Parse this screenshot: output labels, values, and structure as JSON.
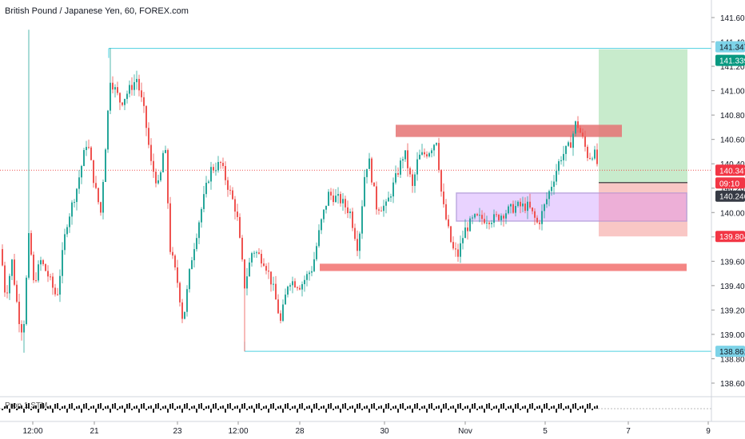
{
  "header": {
    "title": "British Pound / Japanese Yen, 60, FOREX.com"
  },
  "indicator": {
    "label": "Prop 1 STM"
  },
  "colors": {
    "up": "#26a69a",
    "down": "#ef5350",
    "wick": "#5d606b",
    "current_line": "#ef5350",
    "teal_line": "#4dd0e1",
    "profit_zone": "#c8ebcc",
    "loss_zone": "#f9c7c5",
    "supply_zone": "#e57373",
    "demand_zone": "#ef5350",
    "range_box_fill": "#e6ccff",
    "range_box_border": "#b39ddb",
    "range_pink": "#f48fb1",
    "badge_teal": "#7dd3e8",
    "badge_green": "#089981",
    "badge_red": "#f23645",
    "badge_dark": "#363a45"
  },
  "chart_data": {
    "type": "candlestick",
    "symbol": "GBPJPY",
    "interval": "60",
    "ylim": [
      138.5,
      141.7
    ],
    "y_ticks": [
      "138.600",
      "138.800",
      "139.000",
      "139.200",
      "139.400",
      "139.600",
      "139.800",
      "140.000",
      "140.200",
      "140.400",
      "140.600",
      "140.800",
      "141.000",
      "141.200",
      "141.400",
      "141.600"
    ],
    "x_ticks": [
      "12:00",
      "21",
      "23",
      "12:00",
      "28",
      "30",
      "Nov",
      "5",
      "7",
      "9"
    ],
    "current_price": 140.347,
    "price_labels": [
      {
        "value": "141.347",
        "kind": "teal"
      },
      {
        "value": "141.339",
        "kind": "green"
      },
      {
        "value": "140.347",
        "kind": "red"
      },
      {
        "value": "09:10",
        "kind": "red"
      },
      {
        "value": "140.246",
        "kind": "dark"
      },
      {
        "value": "139.804",
        "kind": "red"
      },
      {
        "value": "138.861",
        "kind": "teal"
      }
    ],
    "levels": {
      "high_line": 141.347,
      "low_line": 138.861,
      "position_entry": 140.246,
      "position_target": 141.339,
      "position_stop": 139.804
    },
    "zones": [
      {
        "name": "supply",
        "from": 140.62,
        "to": 140.72
      },
      {
        "name": "demand",
        "from": 139.52,
        "to": 139.58
      },
      {
        "name": "range",
        "from": 139.93,
        "to": 140.16
      }
    ],
    "candles": []
  }
}
